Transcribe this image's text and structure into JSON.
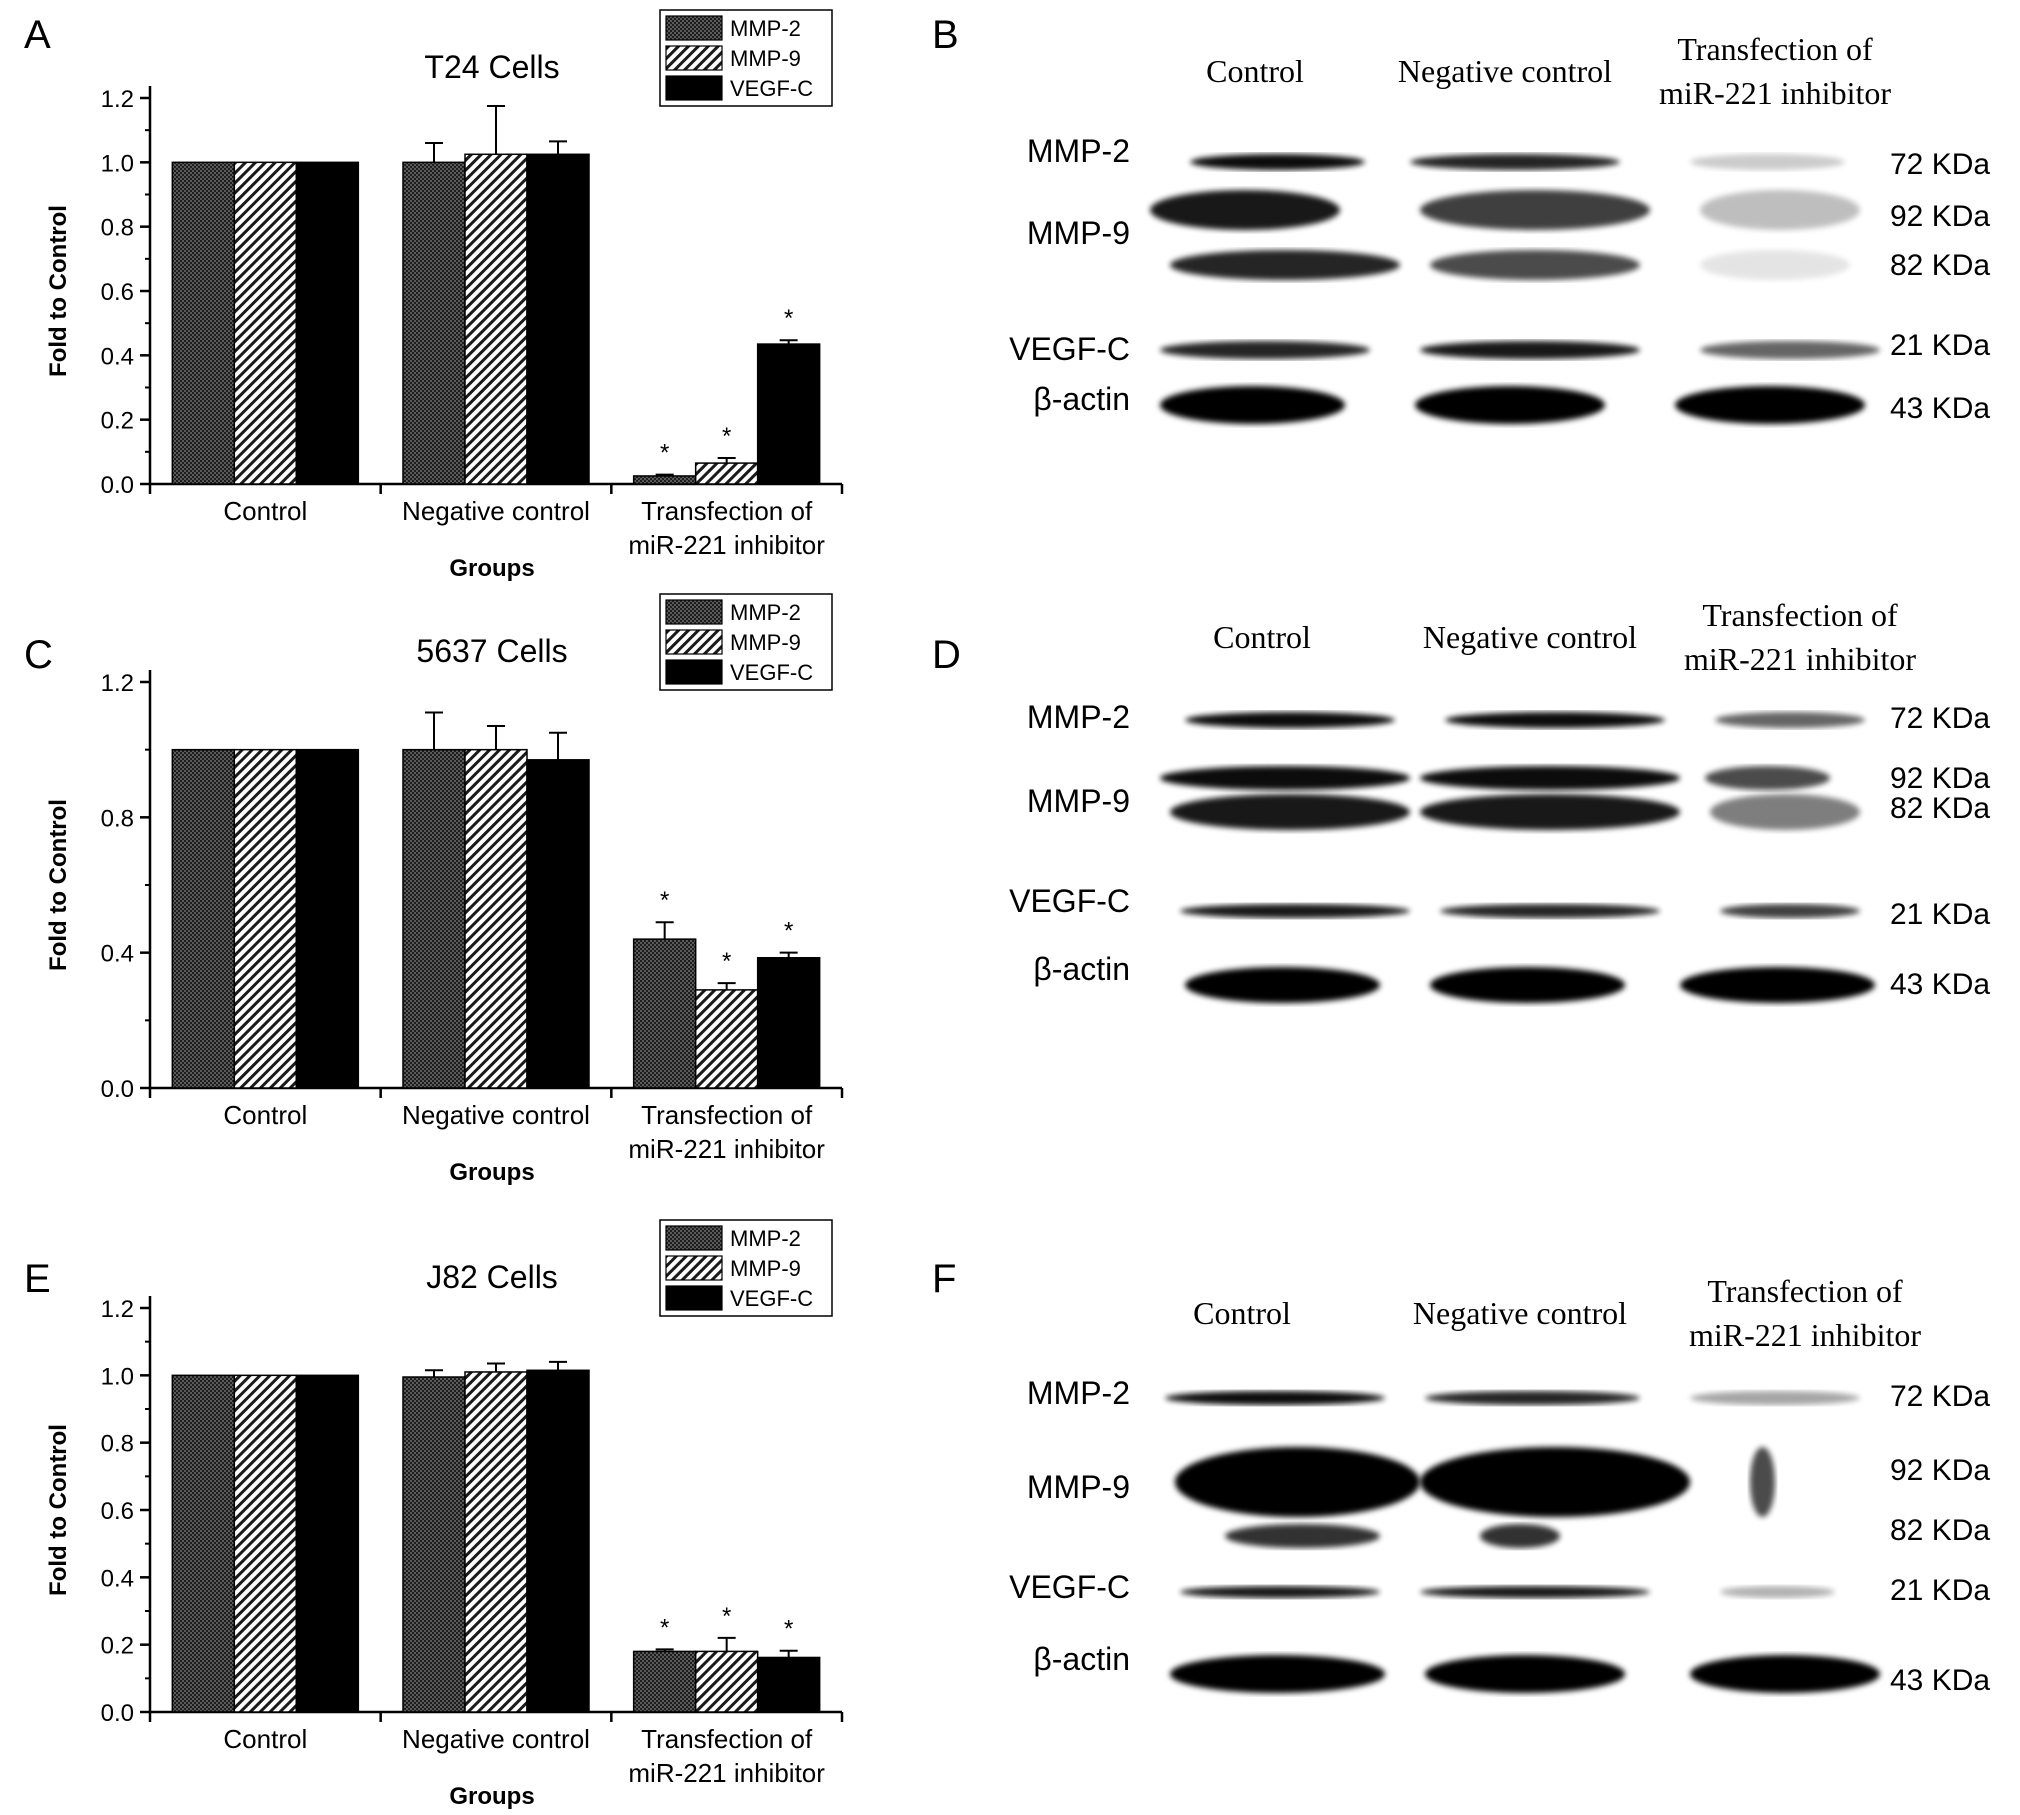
{
  "legend_entries": [
    "MMP-2",
    "MMP-9",
    "VEGF-C"
  ],
  "colors": {
    "mmp2": "#3a3a3a",
    "mmp9_bg": "#ffffff",
    "mmp9_line": "#222222",
    "vegfc": "#000000"
  },
  "chart_data": [
    {
      "panel": "A",
      "type": "bar",
      "title": "T24 Cells",
      "xlabel": "Groups",
      "ylabel": "Fold to Control",
      "ylim": [
        0,
        1.2
      ],
      "yticks": [
        "0.0",
        "0.2",
        "0.4",
        "0.6",
        "0.8",
        "1.0",
        "1.2"
      ],
      "categories": [
        "Control",
        "Negative control",
        "Transfection of|miR-221 inhibitor"
      ],
      "series": [
        {
          "name": "MMP-2",
          "values": [
            1.0,
            1.0,
            0.025
          ],
          "errors": [
            0,
            0.06,
            0.004
          ],
          "sig": [
            false,
            false,
            true
          ]
        },
        {
          "name": "MMP-9",
          "values": [
            1.0,
            1.025,
            0.065
          ],
          "errors": [
            0,
            0.15,
            0.016
          ],
          "sig": [
            false,
            false,
            true
          ]
        },
        {
          "name": "VEGF-C",
          "values": [
            1.0,
            1.025,
            0.435
          ],
          "errors": [
            0,
            0.04,
            0.012
          ],
          "sig": [
            false,
            false,
            true
          ]
        }
      ],
      "sig_label": "*"
    },
    {
      "panel": "C",
      "type": "bar",
      "title": "5637 Cells",
      "xlabel": "Groups",
      "ylabel": "Fold to Control",
      "ylim": [
        0,
        1.2
      ],
      "yticks": [
        "0.0",
        "0.4",
        "0.8",
        "1.2"
      ],
      "categories": [
        "Control",
        "Negative control",
        "Transfection of|miR-221 inhibitor"
      ],
      "series": [
        {
          "name": "MMP-2",
          "values": [
            1.0,
            1.0,
            0.44
          ],
          "errors": [
            0,
            0.11,
            0.05
          ],
          "sig": [
            false,
            false,
            true
          ]
        },
        {
          "name": "MMP-9",
          "values": [
            1.0,
            1.0,
            0.29
          ],
          "errors": [
            0,
            0.07,
            0.02
          ],
          "sig": [
            false,
            false,
            true
          ]
        },
        {
          "name": "VEGF-C",
          "values": [
            1.0,
            0.97,
            0.385
          ],
          "errors": [
            0,
            0.08,
            0.015
          ],
          "sig": [
            false,
            false,
            true
          ]
        }
      ],
      "sig_label": "*"
    },
    {
      "panel": "E",
      "type": "bar",
      "title": "J82 Cells",
      "xlabel": "Groups",
      "ylabel": "Fold to Control",
      "ylim": [
        0,
        1.2
      ],
      "yticks": [
        "0.0",
        "0.2",
        "0.4",
        "0.6",
        "0.8",
        "1.0",
        "1.2"
      ],
      "categories": [
        "Control",
        "Negative control",
        "Transfection of|miR-221 inhibitor"
      ],
      "series": [
        {
          "name": "MMP-2",
          "values": [
            1.0,
            0.995,
            0.18
          ],
          "errors": [
            0,
            0.02,
            0.006
          ],
          "sig": [
            false,
            false,
            true
          ]
        },
        {
          "name": "MMP-9",
          "values": [
            1.0,
            1.01,
            0.18
          ],
          "errors": [
            0,
            0.025,
            0.04
          ],
          "sig": [
            false,
            false,
            true
          ]
        },
        {
          "name": "VEGF-C",
          "values": [
            1.0,
            1.015,
            0.162
          ],
          "errors": [
            0,
            0.025,
            0.02
          ],
          "sig": [
            false,
            false,
            true
          ]
        }
      ],
      "sig_label": "*"
    }
  ],
  "blots": [
    {
      "panel": "B",
      "lanes": [
        "Control",
        "Negative control",
        "Transfection of|miR-221 inhibitor"
      ],
      "proteins": [
        "MMP-2",
        "MMP-9",
        "VEGF-C",
        "β-actin"
      ],
      "sizes": [
        "72 KDa",
        "92 KDa",
        "82 KDa",
        "21 KDa",
        "43 KDa"
      ]
    },
    {
      "panel": "D",
      "lanes": [
        "Control",
        "Negative control",
        "Transfection of|miR-221 inhibitor"
      ],
      "proteins": [
        "MMP-2",
        "MMP-9",
        "VEGF-C",
        "β-actin"
      ],
      "sizes": [
        "72 KDa",
        "92 KDa",
        "82 KDa",
        "21 KDa",
        "43 KDa"
      ]
    },
    {
      "panel": "F",
      "lanes": [
        "Control",
        "Negative control",
        "Transfection of|miR-221 inhibitor"
      ],
      "proteins": [
        "MMP-2",
        "MMP-9",
        "VEGF-C",
        "β-actin"
      ],
      "sizes": [
        "72 KDa",
        "92 KDa",
        "82 KDa",
        "21 KDa",
        "43 KDa"
      ]
    }
  ]
}
